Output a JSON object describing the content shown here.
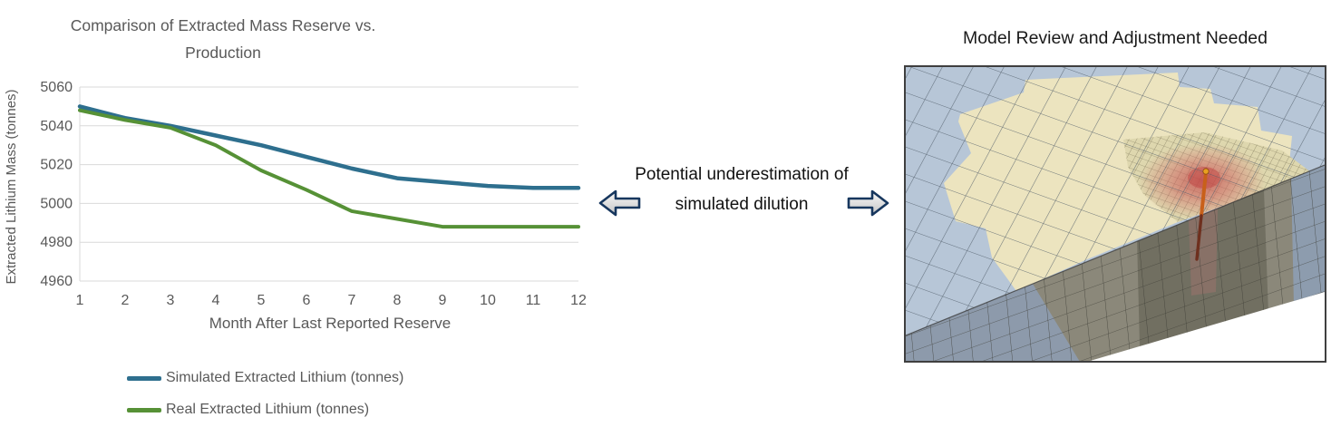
{
  "left_chart": {
    "title": "Comparison of Extracted Mass Reserve vs. Production",
    "x_axis_title": "Month After Last Reported Reserve",
    "y_axis_title": "Extracted Lithium Mass (tonnes)"
  },
  "chart_data": {
    "type": "line",
    "title": "Comparison of Extracted Mass Reserve vs. Production",
    "x": [
      1,
      2,
      3,
      4,
      5,
      6,
      7,
      8,
      9,
      10,
      11,
      12
    ],
    "xlabel": "Month After Last Reported Reserve",
    "ylabel": "Extracted Lithium Mass (tonnes)",
    "ylim": [
      4960,
      5060
    ],
    "yticks": [
      4960,
      4980,
      5000,
      5020,
      5040,
      5060
    ],
    "grid": true,
    "legend_position": "bottom-left",
    "series": [
      {
        "name": "Simulated Extracted Lithium (tonnes)",
        "color": "#2E6F8E",
        "values": [
          5050,
          5044,
          5040,
          5035,
          5030,
          5024,
          5018,
          5013,
          5011,
          5009,
          5008,
          5008
        ]
      },
      {
        "name": "Real Extracted Lithium (tonnes)",
        "color": "#569136",
        "values": [
          5048,
          5043,
          5039,
          5030,
          5017,
          5007,
          4996,
          4992,
          4988,
          4988,
          4988,
          4988
        ]
      }
    ]
  },
  "middle": {
    "text": "Potential underestimation of simulated dilution",
    "left_icon": "block-arrow-left",
    "right_icon": "block-arrow-right",
    "arrow_outline_color": "#17375E"
  },
  "right_panel": {
    "title": "Model Review and Adjustment Needed",
    "figure": {
      "type": "3d-reservoir-grid-model",
      "regions": [
        "background-grid",
        "ore-zone",
        "refined-mesh",
        "dilution-plume",
        "well"
      ],
      "colors": {
        "top_face": "#B7C6D7",
        "ore_zone": "#ECE4BF",
        "refined_mesh": "#DED7AE",
        "plume": "#CD5A5A",
        "front_face": "#8B887A",
        "front_face_blue": "#8D9AAB",
        "well": "#C8601A"
      }
    }
  }
}
